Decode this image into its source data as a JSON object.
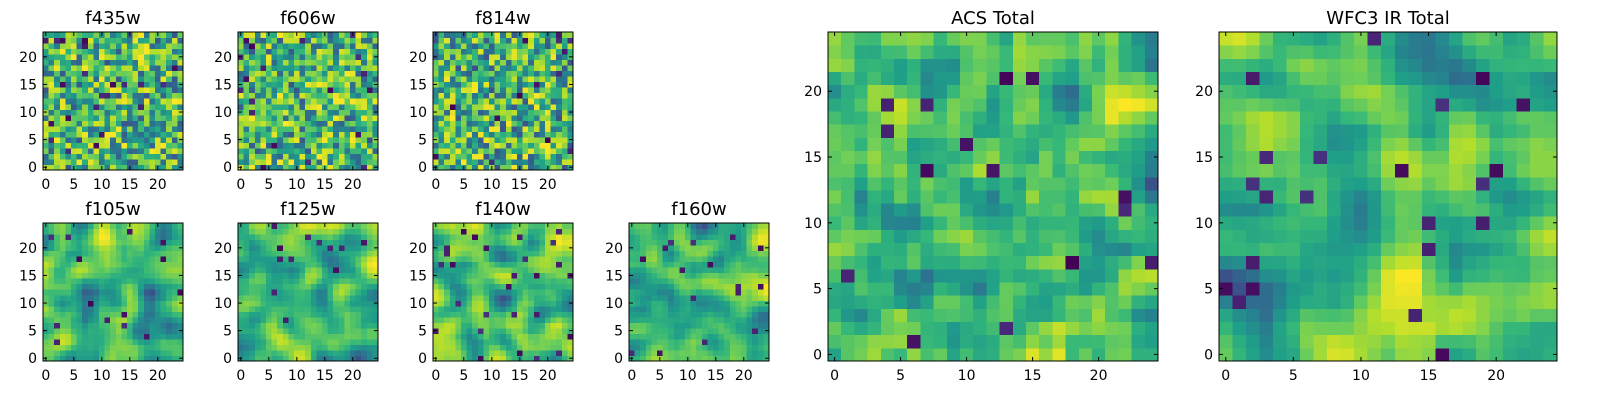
{
  "chart_data": [
    {
      "type": "heatmap",
      "title": "f435w",
      "xlim": [
        0,
        24
      ],
      "ylim": [
        0,
        24
      ],
      "xticks": [
        0,
        5,
        10,
        15,
        20
      ],
      "yticks": [
        0,
        5,
        10,
        15,
        20
      ],
      "colormap": "viridis",
      "texture": "fine-noise"
    },
    {
      "type": "heatmap",
      "title": "f606w",
      "xlim": [
        0,
        24
      ],
      "ylim": [
        0,
        24
      ],
      "xticks": [
        0,
        5,
        10,
        15,
        20
      ],
      "yticks": [
        0,
        5,
        10,
        15,
        20
      ],
      "colormap": "viridis",
      "texture": "fine-noise"
    },
    {
      "type": "heatmap",
      "title": "f814w",
      "xlim": [
        0,
        24
      ],
      "ylim": [
        0,
        24
      ],
      "xticks": [
        0,
        5,
        10,
        15,
        20
      ],
      "yticks": [
        0,
        5,
        10,
        15,
        20
      ],
      "colormap": "viridis",
      "texture": "fine-noise"
    },
    {
      "type": "heatmap",
      "title": "f105w",
      "xlim": [
        0,
        24
      ],
      "ylim": [
        0,
        24
      ],
      "xticks": [
        0,
        5,
        10,
        15,
        20
      ],
      "yticks": [
        0,
        5,
        10,
        15,
        20
      ],
      "colormap": "viridis",
      "texture": "smooth"
    },
    {
      "type": "heatmap",
      "title": "f125w",
      "xlim": [
        0,
        24
      ],
      "ylim": [
        0,
        24
      ],
      "xticks": [
        0,
        5,
        10,
        15,
        20
      ],
      "yticks": [
        0,
        5,
        10,
        15,
        20
      ],
      "colormap": "viridis",
      "texture": "smooth"
    },
    {
      "type": "heatmap",
      "title": "f140w",
      "xlim": [
        0,
        24
      ],
      "ylim": [
        0,
        24
      ],
      "xticks": [
        0,
        5,
        10,
        15,
        20
      ],
      "yticks": [
        0,
        5,
        10,
        15,
        20
      ],
      "colormap": "viridis",
      "texture": "smooth"
    },
    {
      "type": "heatmap",
      "title": "f160w",
      "xlim": [
        0,
        24
      ],
      "ylim": [
        0,
        24
      ],
      "xticks": [
        0,
        5,
        10,
        15,
        20
      ],
      "yticks": [
        0,
        5,
        10,
        15,
        20
      ],
      "colormap": "viridis",
      "texture": "smooth"
    },
    {
      "type": "heatmap",
      "title": "ACS Total",
      "xlim": [
        0,
        24
      ],
      "ylim": [
        0,
        24
      ],
      "xticks": [
        0,
        5,
        10,
        15,
        20
      ],
      "yticks": [
        0,
        5,
        10,
        15,
        20
      ],
      "colormap": "viridis",
      "texture": "medium"
    },
    {
      "type": "heatmap",
      "title": "WFC3 IR Total",
      "xlim": [
        0,
        24
      ],
      "ylim": [
        0,
        24
      ],
      "xticks": [
        0,
        5,
        10,
        15,
        20
      ],
      "yticks": [
        0,
        5,
        10,
        15,
        20
      ],
      "colormap": "viridis",
      "texture": "smooth"
    }
  ]
}
